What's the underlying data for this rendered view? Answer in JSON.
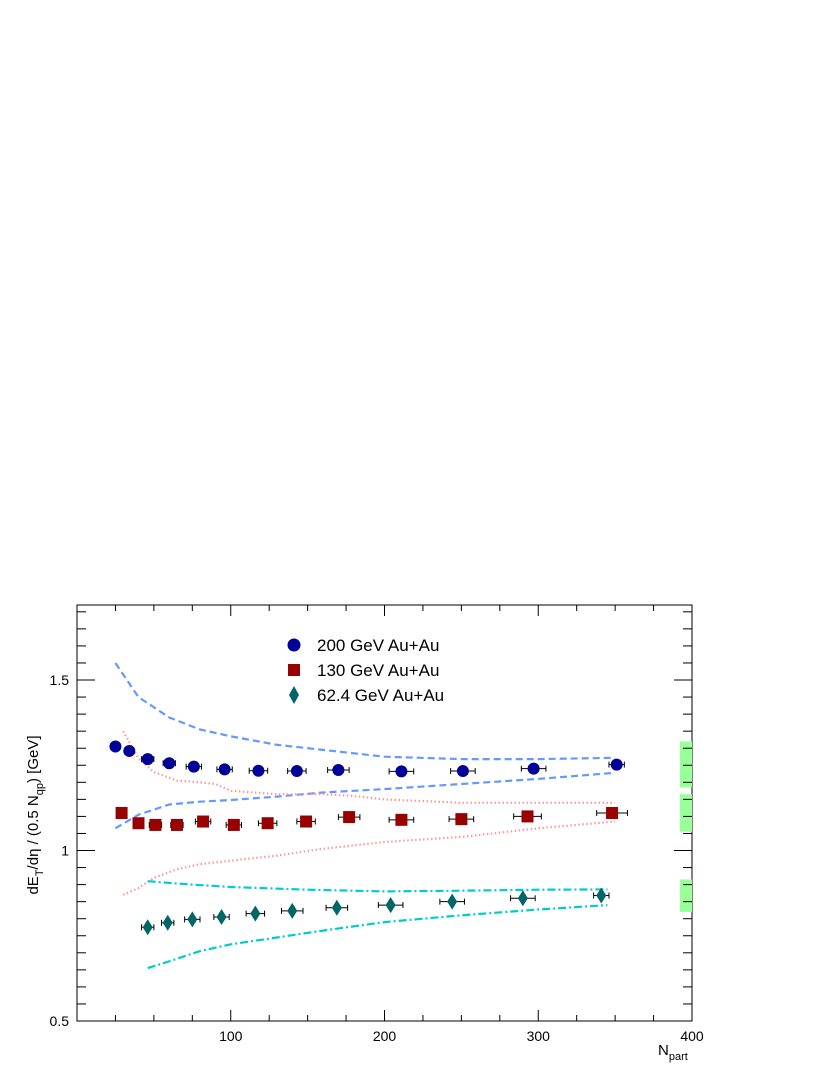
{
  "chart_data": {
    "type": "scatter",
    "title": "",
    "xlabel": "N",
    "xlabel_sub": "part",
    "ylabel_parts": [
      "dE",
      "T",
      "/dη / (0.5 N",
      "qp",
      ") [GeV]"
    ],
    "xlim": [
      0,
      400
    ],
    "ylim": [
      0.5,
      1.72
    ],
    "x_ticks": [
      100,
      200,
      300,
      400
    ],
    "y_ticks": [
      0.5,
      1,
      1.5
    ],
    "x_tick_labels": [
      "100",
      "200",
      "300",
      "400"
    ],
    "y_tick_labels": [
      "0.5",
      "1",
      "1.5"
    ],
    "grid": false,
    "legend_position": "top-center",
    "series": [
      {
        "name": "200 GeV Au+Au",
        "marker": "circle",
        "color": "#000099",
        "x": [
          25,
          34,
          46,
          60,
          76,
          96,
          118,
          143,
          170,
          211,
          251,
          297,
          351
        ],
        "y": [
          1.305,
          1.292,
          1.268,
          1.256,
          1.246,
          1.238,
          1.234,
          1.233,
          1.236,
          1.232,
          1.233,
          1.24,
          1.252
        ],
        "xerr": [
          3,
          3,
          4,
          4,
          5,
          5,
          6,
          6,
          7,
          8,
          8,
          8,
          5
        ]
      },
      {
        "name": "130 GeV Au+Au",
        "marker": "square",
        "color": "#990000",
        "x": [
          29,
          40,
          51,
          65,
          82,
          102,
          124,
          149,
          177,
          211,
          250,
          293,
          348
        ],
        "y": [
          1.11,
          1.08,
          1.075,
          1.075,
          1.085,
          1.075,
          1.08,
          1.085,
          1.098,
          1.09,
          1.092,
          1.1,
          1.11
        ],
        "xerr": [
          3,
          3,
          4,
          4,
          5,
          5,
          6,
          6,
          7,
          8,
          8,
          9,
          10
        ]
      },
      {
        "name": "62.4 GeV Au+Au",
        "marker": "diamond",
        "color": "#006666",
        "x": [
          46,
          59,
          75,
          94,
          116,
          140,
          169,
          204,
          244,
          290,
          341
        ],
        "y": [
          0.775,
          0.788,
          0.798,
          0.805,
          0.815,
          0.823,
          0.832,
          0.84,
          0.85,
          0.86,
          0.868
        ],
        "xerr": [
          4,
          4,
          5,
          5,
          6,
          7,
          7,
          8,
          8,
          8,
          5
        ]
      }
    ],
    "bands": [
      {
        "color": "#6699ff",
        "style": "dashed",
        "upper": {
          "x": [
            25,
            40,
            60,
            80,
            100,
            130,
            160,
            200,
            250,
            300,
            350
          ],
          "y": [
            1.55,
            1.45,
            1.39,
            1.355,
            1.335,
            1.31,
            1.295,
            1.275,
            1.268,
            1.268,
            1.272
          ]
        },
        "lower": {
          "x": [
            25,
            40,
            60,
            80,
            100,
            130,
            160,
            200,
            250,
            300,
            350
          ],
          "y": [
            1.065,
            1.105,
            1.135,
            1.143,
            1.148,
            1.158,
            1.17,
            1.18,
            1.195,
            1.21,
            1.228
          ]
        }
      },
      {
        "color": "#ff9999",
        "style": "dotted",
        "upper": {
          "x": [
            30,
            40,
            50,
            65,
            80,
            90,
            100,
            130,
            160,
            180,
            200,
            250,
            300,
            350
          ],
          "y": [
            1.35,
            1.27,
            1.23,
            1.205,
            1.2,
            1.195,
            1.175,
            1.165,
            1.165,
            1.16,
            1.15,
            1.14,
            1.14,
            1.14
          ]
        },
        "lower": {
          "x": [
            30,
            40,
            50,
            65,
            80,
            100,
            130,
            160,
            200,
            250,
            300,
            350
          ],
          "y": [
            0.87,
            0.89,
            0.92,
            0.945,
            0.96,
            0.97,
            0.985,
            1.005,
            1.025,
            1.04,
            1.065,
            1.085
          ]
        }
      },
      {
        "color": "#00cccc",
        "style": "dashdot",
        "upper": {
          "x": [
            46,
            60,
            75,
            100,
            150,
            200,
            250,
            300,
            345
          ],
          "y": [
            0.91,
            0.905,
            0.9,
            0.893,
            0.885,
            0.88,
            0.882,
            0.885,
            0.886
          ]
        },
        "lower": {
          "x": [
            46,
            60,
            80,
            100,
            130,
            160,
            200,
            250,
            300,
            345
          ],
          "y": [
            0.655,
            0.675,
            0.705,
            0.725,
            0.745,
            0.765,
            0.79,
            0.81,
            0.827,
            0.84
          ]
        }
      }
    ],
    "systematic_boxes": [
      {
        "color": "#99ff99",
        "series": "200 GeV Au+Au",
        "ylow": 1.185,
        "yhigh": 1.32
      },
      {
        "color": "#99ff99",
        "series": "130 GeV Au+Au",
        "ylow": 1.055,
        "yhigh": 1.165
      },
      {
        "color": "#99ff99",
        "series": "62.4 GeV Au+Au",
        "ylow": 0.82,
        "yhigh": 0.915
      }
    ]
  }
}
